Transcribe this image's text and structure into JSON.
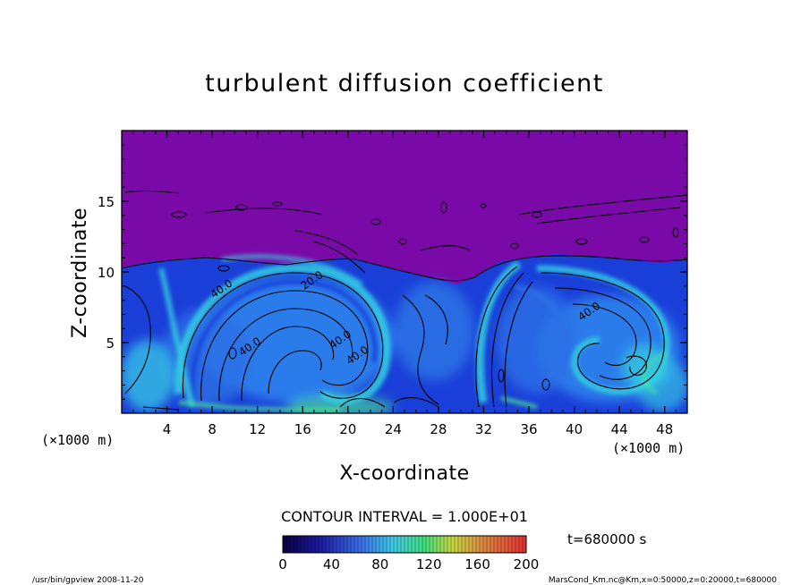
{
  "chart_data": {
    "type": "heatmap",
    "title": "turbulent diffusion coefficient",
    "xlabel": "X-coordinate",
    "ylabel": "Z-coordinate",
    "x_unit": "(×1000 m)",
    "y_unit": "(×1000 m)",
    "xlim": [
      0,
      50
    ],
    "ylim": [
      0,
      20
    ],
    "x_ticks": [
      4,
      8,
      12,
      16,
      20,
      24,
      28,
      32,
      36,
      40,
      44,
      48
    ],
    "y_ticks": [
      5,
      10,
      15
    ],
    "contour_interval_text": "CONTOUR INTERVAL = 1.000E+01",
    "time_text": "t=680000 s",
    "colorbar": {
      "min": 0,
      "max": 200,
      "ticks": [
        0,
        40,
        80,
        120,
        160,
        200
      ]
    },
    "contour_labels": [
      {
        "text": "40.0",
        "x": 9.0,
        "y": 8.6
      },
      {
        "text": "40.0",
        "x": 11.5,
        "y": 4.5
      },
      {
        "text": "40.0",
        "x": 19.5,
        "y": 5.0
      },
      {
        "text": "40.0",
        "x": 21.0,
        "y": 3.9
      },
      {
        "text": "40.0",
        "x": 41.5,
        "y": 7.0
      },
      {
        "text": "20.0",
        "x": 17.0,
        "y": 9.2
      }
    ],
    "background_value_upper": 0,
    "colors": {
      "upper_region": "#7a0aa8",
      "field_low": "#1a3fd8",
      "field_mid": "#2f86ee",
      "field_high": "#33d0e0",
      "field_peak": "#4cf08a"
    }
  },
  "footer": {
    "left": "/usr/bin/gpview   2008-11-20",
    "right": "MarsCond_Km.nc@Km,x=0:50000,z=0:20000,t=680000"
  }
}
